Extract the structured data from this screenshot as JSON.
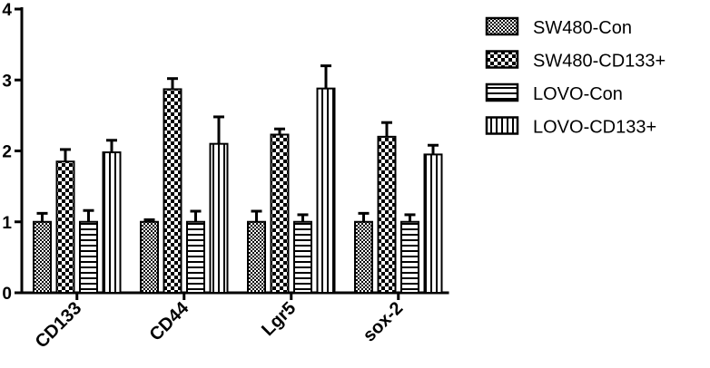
{
  "chart_data": {
    "type": "bar",
    "title": "",
    "xlabel": "",
    "ylabel": "",
    "ylim": [
      0,
      4
    ],
    "yticks": [
      "0",
      "1",
      "2",
      "3",
      "4"
    ],
    "categories": [
      "CD133",
      "CD44",
      "Lgr5",
      "sox-2"
    ],
    "series": [
      {
        "name": "SW480-Con",
        "pattern": "checker-fine",
        "values": [
          1.0,
          1.0,
          1.0,
          1.0
        ],
        "errors": [
          0.12,
          0.03,
          0.15,
          0.12
        ]
      },
      {
        "name": "SW480-CD133+",
        "pattern": "checker-coarse",
        "values": [
          1.85,
          2.87,
          2.23,
          2.2
        ],
        "errors": [
          0.17,
          0.15,
          0.08,
          0.2
        ]
      },
      {
        "name": "LOVO-Con",
        "pattern": "horizontal-stripes",
        "values": [
          1.0,
          1.0,
          1.0,
          1.0
        ],
        "errors": [
          0.16,
          0.15,
          0.1,
          0.1
        ]
      },
      {
        "name": "LOVO-CD133+",
        "pattern": "vertical-stripes",
        "values": [
          1.98,
          2.1,
          2.88,
          1.95
        ],
        "errors": [
          0.17,
          0.38,
          0.32,
          0.13
        ]
      }
    ],
    "grid": false,
    "legend_position": "top-right"
  }
}
